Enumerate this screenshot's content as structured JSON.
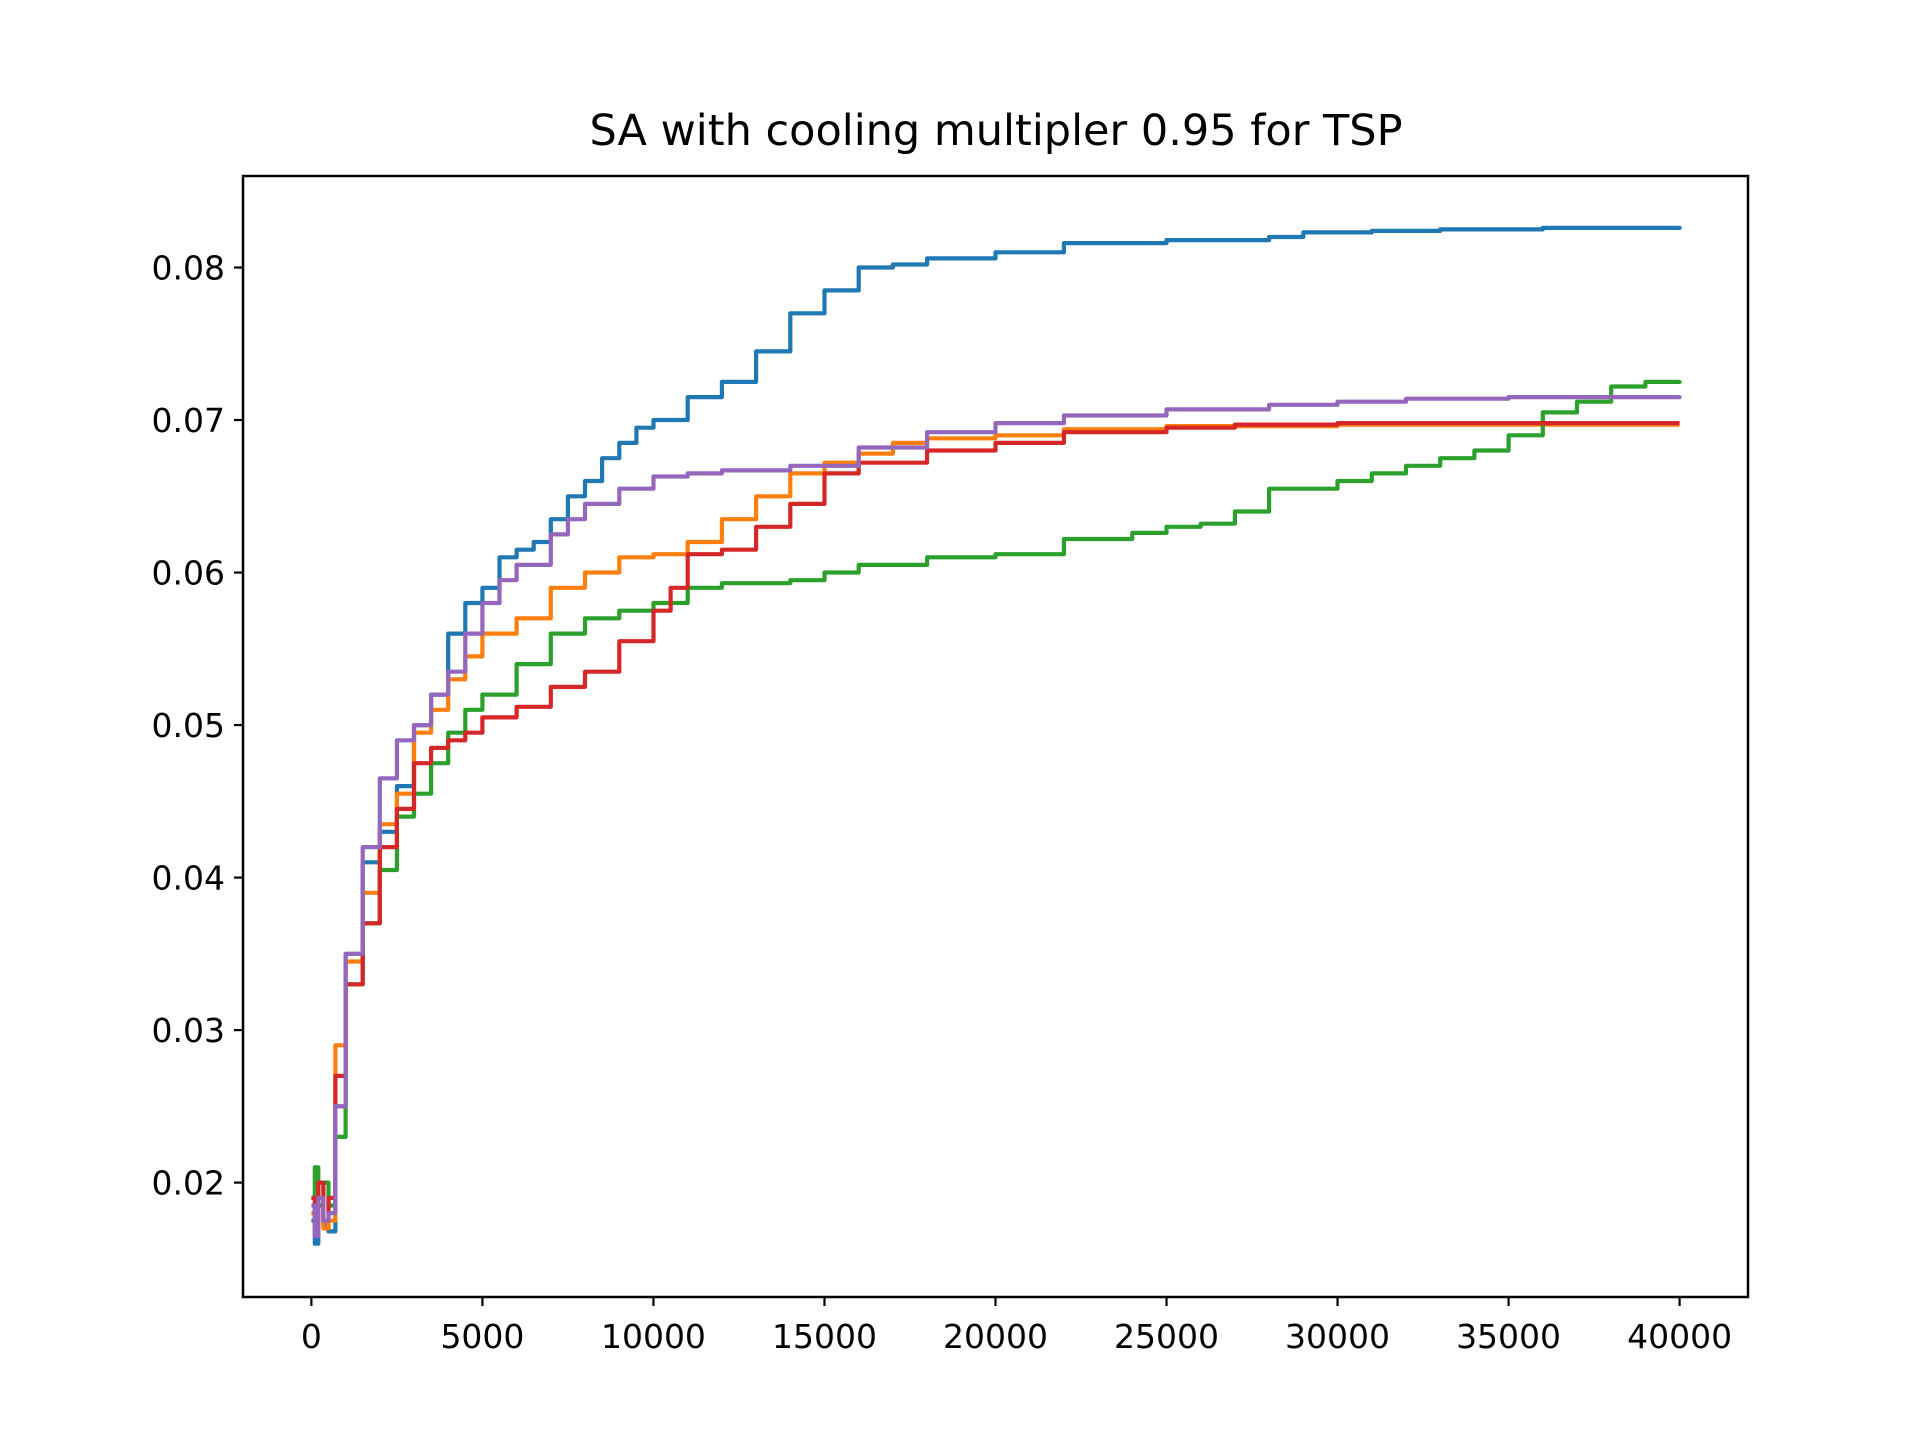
{
  "chart_data": {
    "type": "line",
    "title": "SA with cooling multipler 0.95 for TSP",
    "xlabel": "",
    "ylabel": "",
    "xlim": [
      -2000,
      42000
    ],
    "ylim": [
      0.0125,
      0.086
    ],
    "xticks": [
      0,
      5000,
      10000,
      15000,
      20000,
      25000,
      30000,
      35000,
      40000
    ],
    "xtick_labels": [
      "0",
      "5000",
      "10000",
      "15000",
      "20000",
      "25000",
      "30000",
      "35000",
      "40000"
    ],
    "yticks": [
      0.02,
      0.03,
      0.04,
      0.05,
      0.06,
      0.07,
      0.08
    ],
    "ytick_labels": [
      "0.02",
      "0.03",
      "0.04",
      "0.05",
      "0.06",
      "0.07",
      "0.08"
    ],
    "grid": false,
    "series": [
      {
        "color": "#1f77b4",
        "points": [
          [
            0,
            0.0175
          ],
          [
            100,
            0.016
          ],
          [
            200,
            0.0185
          ],
          [
            350,
            0.0172
          ],
          [
            500,
            0.0168
          ],
          [
            700,
            0.025
          ],
          [
            1000,
            0.035
          ],
          [
            1500,
            0.041
          ],
          [
            2000,
            0.043
          ],
          [
            2500,
            0.046
          ],
          [
            3000,
            0.05
          ],
          [
            3500,
            0.052
          ],
          [
            4000,
            0.056
          ],
          [
            4500,
            0.058
          ],
          [
            5000,
            0.059
          ],
          [
            5500,
            0.061
          ],
          [
            6000,
            0.0615
          ],
          [
            6500,
            0.062
          ],
          [
            7000,
            0.0635
          ],
          [
            7500,
            0.065
          ],
          [
            8000,
            0.066
          ],
          [
            8500,
            0.0675
          ],
          [
            9000,
            0.0685
          ],
          [
            9500,
            0.0695
          ],
          [
            10000,
            0.07
          ],
          [
            11000,
            0.0715
          ],
          [
            12000,
            0.0725
          ],
          [
            13000,
            0.0745
          ],
          [
            14000,
            0.077
          ],
          [
            15000,
            0.0785
          ],
          [
            16000,
            0.08
          ],
          [
            17000,
            0.0802
          ],
          [
            18000,
            0.0806
          ],
          [
            20000,
            0.081
          ],
          [
            22000,
            0.0816
          ],
          [
            25000,
            0.0818
          ],
          [
            28000,
            0.082
          ],
          [
            29000,
            0.0823
          ],
          [
            31000,
            0.0824
          ],
          [
            33000,
            0.0825
          ],
          [
            36000,
            0.0826
          ],
          [
            40000,
            0.0827
          ]
        ]
      },
      {
        "color": "#ff7f0e",
        "points": [
          [
            0,
            0.018
          ],
          [
            100,
            0.017
          ],
          [
            200,
            0.0185
          ],
          [
            350,
            0.017
          ],
          [
            500,
            0.0175
          ],
          [
            700,
            0.029
          ],
          [
            1000,
            0.0345
          ],
          [
            1500,
            0.039
          ],
          [
            2000,
            0.0435
          ],
          [
            2500,
            0.0455
          ],
          [
            3000,
            0.0495
          ],
          [
            3500,
            0.051
          ],
          [
            4000,
            0.053
          ],
          [
            4500,
            0.0545
          ],
          [
            5000,
            0.056
          ],
          [
            6000,
            0.057
          ],
          [
            7000,
            0.059
          ],
          [
            8000,
            0.06
          ],
          [
            9000,
            0.061
          ],
          [
            10000,
            0.0612
          ],
          [
            11000,
            0.062
          ],
          [
            12000,
            0.0635
          ],
          [
            13000,
            0.065
          ],
          [
            14000,
            0.0665
          ],
          [
            15000,
            0.0672
          ],
          [
            16000,
            0.0678
          ],
          [
            17000,
            0.0685
          ],
          [
            18000,
            0.0688
          ],
          [
            20000,
            0.069
          ],
          [
            22000,
            0.0694
          ],
          [
            25000,
            0.0696
          ],
          [
            30000,
            0.0697
          ],
          [
            40000,
            0.0697
          ]
        ]
      },
      {
        "color": "#2ca02c",
        "points": [
          [
            0,
            0.019
          ],
          [
            100,
            0.021
          ],
          [
            200,
            0.0185
          ],
          [
            350,
            0.02
          ],
          [
            500,
            0.0185
          ],
          [
            700,
            0.023
          ],
          [
            1000,
            0.033
          ],
          [
            1500,
            0.037
          ],
          [
            2000,
            0.0405
          ],
          [
            2500,
            0.044
          ],
          [
            3000,
            0.0455
          ],
          [
            3500,
            0.0475
          ],
          [
            4000,
            0.0495
          ],
          [
            4500,
            0.051
          ],
          [
            5000,
            0.052
          ],
          [
            6000,
            0.054
          ],
          [
            7000,
            0.056
          ],
          [
            8000,
            0.057
          ],
          [
            9000,
            0.0575
          ],
          [
            10000,
            0.058
          ],
          [
            11000,
            0.059
          ],
          [
            12000,
            0.0593
          ],
          [
            14000,
            0.0595
          ],
          [
            15000,
            0.06
          ],
          [
            16000,
            0.0605
          ],
          [
            18000,
            0.061
          ],
          [
            20000,
            0.0612
          ],
          [
            22000,
            0.0622
          ],
          [
            24000,
            0.0626
          ],
          [
            25000,
            0.063
          ],
          [
            26000,
            0.0632
          ],
          [
            27000,
            0.064
          ],
          [
            28000,
            0.0655
          ],
          [
            30000,
            0.066
          ],
          [
            31000,
            0.0665
          ],
          [
            32000,
            0.067
          ],
          [
            33000,
            0.0675
          ],
          [
            34000,
            0.068
          ],
          [
            35000,
            0.069
          ],
          [
            36000,
            0.0705
          ],
          [
            37000,
            0.0712
          ],
          [
            38000,
            0.0722
          ],
          [
            39000,
            0.0725
          ],
          [
            40000,
            0.0726
          ]
        ]
      },
      {
        "color": "#d62728",
        "points": [
          [
            0,
            0.019
          ],
          [
            100,
            0.0175
          ],
          [
            200,
            0.02
          ],
          [
            350,
            0.0175
          ],
          [
            500,
            0.019
          ],
          [
            700,
            0.027
          ],
          [
            1000,
            0.033
          ],
          [
            1500,
            0.037
          ],
          [
            2000,
            0.042
          ],
          [
            2500,
            0.0445
          ],
          [
            3000,
            0.0475
          ],
          [
            3500,
            0.0485
          ],
          [
            4000,
            0.049
          ],
          [
            4500,
            0.0495
          ],
          [
            5000,
            0.0505
          ],
          [
            6000,
            0.0512
          ],
          [
            7000,
            0.0525
          ],
          [
            8000,
            0.0535
          ],
          [
            9000,
            0.0555
          ],
          [
            10000,
            0.0575
          ],
          [
            10500,
            0.059
          ],
          [
            11000,
            0.0612
          ],
          [
            12000,
            0.0615
          ],
          [
            13000,
            0.063
          ],
          [
            14000,
            0.0645
          ],
          [
            15000,
            0.0665
          ],
          [
            16000,
            0.0672
          ],
          [
            18000,
            0.068
          ],
          [
            20000,
            0.0685
          ],
          [
            22000,
            0.0692
          ],
          [
            25000,
            0.0695
          ],
          [
            27000,
            0.0697
          ],
          [
            30000,
            0.0698
          ],
          [
            40000,
            0.0698
          ]
        ]
      },
      {
        "color": "#9467bd",
        "points": [
          [
            0,
            0.0185
          ],
          [
            100,
            0.0165
          ],
          [
            200,
            0.019
          ],
          [
            350,
            0.0175
          ],
          [
            500,
            0.018
          ],
          [
            700,
            0.025
          ],
          [
            1000,
            0.035
          ],
          [
            1500,
            0.042
          ],
          [
            2000,
            0.0465
          ],
          [
            2500,
            0.049
          ],
          [
            3000,
            0.05
          ],
          [
            3500,
            0.052
          ],
          [
            4000,
            0.0535
          ],
          [
            4500,
            0.056
          ],
          [
            5000,
            0.058
          ],
          [
            5500,
            0.0595
          ],
          [
            6000,
            0.0605
          ],
          [
            7000,
            0.0625
          ],
          [
            7500,
            0.0635
          ],
          [
            8000,
            0.0645
          ],
          [
            9000,
            0.0655
          ],
          [
            10000,
            0.0663
          ],
          [
            11000,
            0.0665
          ],
          [
            12000,
            0.0667
          ],
          [
            14000,
            0.067
          ],
          [
            16000,
            0.0682
          ],
          [
            18000,
            0.0692
          ],
          [
            20000,
            0.0698
          ],
          [
            22000,
            0.0703
          ],
          [
            25000,
            0.0707
          ],
          [
            28000,
            0.071
          ],
          [
            30000,
            0.0712
          ],
          [
            32000,
            0.0714
          ],
          [
            35000,
            0.0715
          ],
          [
            40000,
            0.0716
          ]
        ]
      }
    ]
  }
}
